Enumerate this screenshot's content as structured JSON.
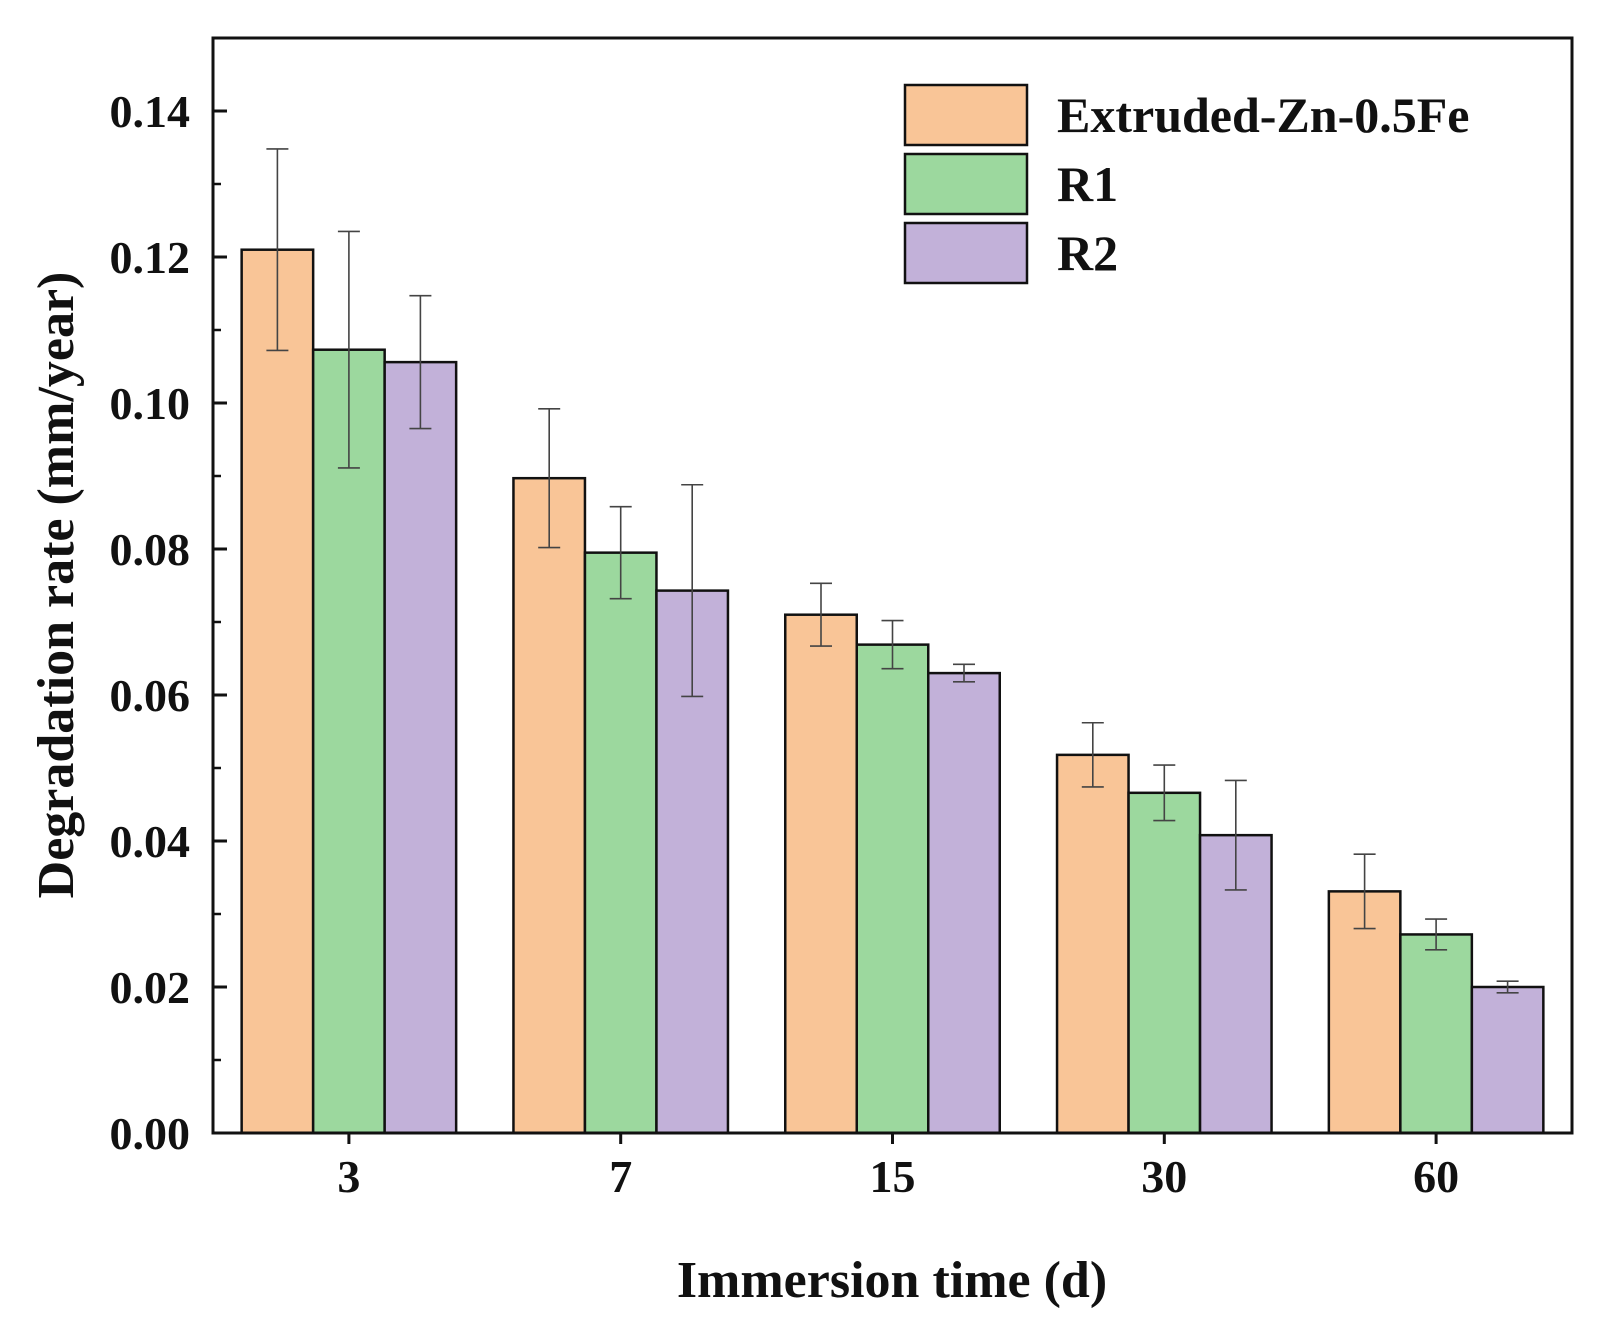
{
  "chart_data": {
    "type": "bar",
    "xlabel": "Immersion time (d)",
    "ylabel": "Degradation rate (mm/year)",
    "categories": [
      "3",
      "7",
      "15",
      "30",
      "60"
    ],
    "ylim": [
      0,
      0.15
    ],
    "yticks": [
      0.0,
      0.02,
      0.04,
      0.06,
      0.08,
      0.1,
      0.12,
      0.14
    ],
    "ytick_labels": [
      "0.00",
      "0.02",
      "0.04",
      "0.06",
      "0.08",
      "0.10",
      "0.12",
      "0.14"
    ],
    "legend_position": "top-right",
    "grid": false,
    "series": [
      {
        "name": "Extruded-Zn-0.5Fe",
        "color": "#f9c597",
        "values": [
          0.121,
          0.0897,
          0.071,
          0.0518,
          0.0331
        ],
        "errors": [
          0.0138,
          0.0095,
          0.0043,
          0.0044,
          0.0051
        ]
      },
      {
        "name": "R1",
        "color": "#9cd89e",
        "values": [
          0.1073,
          0.0795,
          0.0669,
          0.0466,
          0.0272
        ],
        "errors": [
          0.0162,
          0.0063,
          0.0033,
          0.0038,
          0.0021
        ]
      },
      {
        "name": "R2",
        "color": "#c2b1d9",
        "values": [
          0.1056,
          0.0743,
          0.063,
          0.0408,
          0.02
        ],
        "errors": [
          0.0091,
          0.0145,
          0.0012,
          0.0075,
          0.0008
        ]
      }
    ]
  }
}
